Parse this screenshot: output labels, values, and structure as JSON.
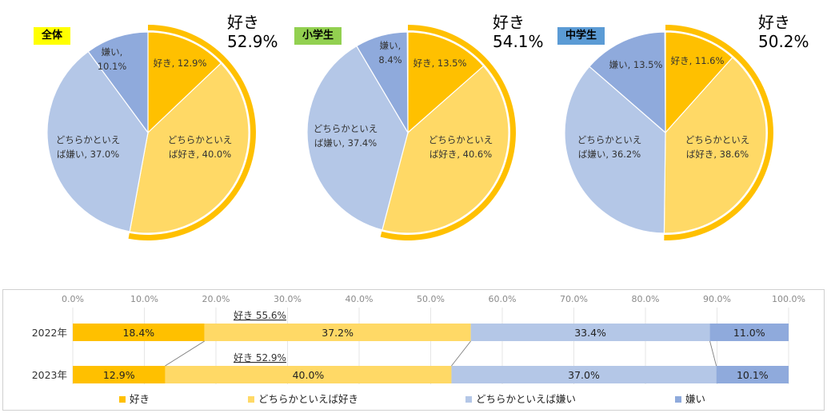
{
  "colors": {
    "suki": "#FFC000",
    "dochira_suki": "#FFD966",
    "dochira_kirai": "#B4C7E7",
    "kirai": "#8FAADC"
  },
  "chart_data": [
    {
      "type": "pie",
      "badge": "全体",
      "badge_color": "#FFFF00",
      "total_label": "好き",
      "total_value": "52.9%",
      "slices": [
        {
          "name": "好き",
          "value": 12.9,
          "label": "好き, 12.9%"
        },
        {
          "name": "どちらかといえば好き",
          "value": 40.0,
          "label": "どちらかといえ|ば好き, 40.0%"
        },
        {
          "name": "どちらかといえば嫌い",
          "value": 37.0,
          "label": "どちらかといえ|ば嫌い, 37.0%"
        },
        {
          "name": "嫌い",
          "value": 10.1,
          "label": "嫌い,|10.1%"
        }
      ]
    },
    {
      "type": "pie",
      "badge": "小学生",
      "badge_color": "#92D050",
      "total_label": "好き",
      "total_value": "54.1%",
      "slices": [
        {
          "name": "好き",
          "value": 13.5,
          "label": "好き, 13.5%"
        },
        {
          "name": "どちらかといえば好き",
          "value": 40.6,
          "label": "どちらかといえ|ば好き, 40.6%"
        },
        {
          "name": "どちらかといえば嫌い",
          "value": 37.4,
          "label": "どちらかといえ|ば嫌い, 37.4%"
        },
        {
          "name": "嫌い",
          "value": 8.4,
          "label": "嫌い,|8.4%"
        }
      ]
    },
    {
      "type": "pie",
      "badge": "中学生",
      "badge_color": "#5B9BD5",
      "total_label": "好き",
      "total_value": "50.2%",
      "slices": [
        {
          "name": "好き",
          "value": 11.6,
          "label": "好き, 11.6%"
        },
        {
          "name": "どちらかといえば好き",
          "value": 38.6,
          "label": "どちらかといえ|ば好き, 38.6%"
        },
        {
          "name": "どちらかといえば嫌い",
          "value": 36.2,
          "label": "どちらかといえ|ば嫌い, 36.2%"
        },
        {
          "name": "嫌い",
          "value": 13.5,
          "label": "嫌い, 13.5%"
        }
      ]
    },
    {
      "type": "bar",
      "orientation": "horizontal-stacked-100",
      "x_ticks": [
        "0.0%",
        "10.0%",
        "20.0%",
        "30.0%",
        "40.0%",
        "50.0%",
        "60.0%",
        "70.0%",
        "80.0%",
        "90.0%",
        "100.0%"
      ],
      "xlim": [
        0,
        100
      ],
      "categories": [
        "2022年",
        "2023年"
      ],
      "series": [
        {
          "name": "好き",
          "values": [
            18.4,
            12.9
          ],
          "labels": [
            "18.4%",
            "12.9%"
          ]
        },
        {
          "name": "どちらかといえば好き",
          "values": [
            37.2,
            40.0
          ],
          "labels": [
            "37.2%",
            "40.0%"
          ]
        },
        {
          "name": "どちらかといえば嫌い",
          "values": [
            33.4,
            37.0
          ],
          "labels": [
            "33.4%",
            "37.0%"
          ]
        },
        {
          "name": "嫌い",
          "values": [
            11.0,
            10.1
          ],
          "labels": [
            "11.0%",
            "10.1%"
          ]
        }
      ],
      "annotations": [
        "好き 55.6%",
        "好き 52.9%"
      ],
      "legend": [
        "好き",
        "どちらかといえば好き",
        "どちらかといえば嫌い",
        "嫌い"
      ],
      "legend_position": "bottom"
    }
  ]
}
